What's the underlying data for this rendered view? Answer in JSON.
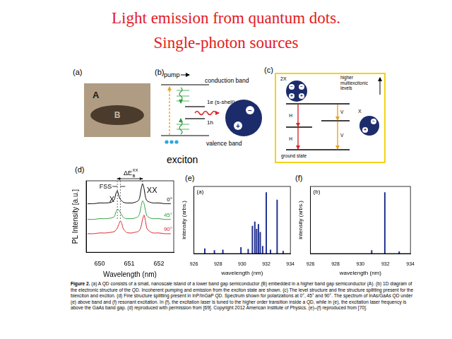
{
  "title": [
    "Light emission from quantum dots.",
    "Single-photon sources"
  ],
  "panels": {
    "a": {
      "label": "(a)",
      "materials": [
        "A",
        "B"
      ]
    },
    "b": {
      "label": "(b)",
      "pump": "pump",
      "conduction_band": "conduction band",
      "electron_level": "1e (s-shell)",
      "hole_level": "1h",
      "valence_band": "valence band",
      "name": "exciton",
      "charges": [
        "−",
        "+"
      ]
    },
    "c": {
      "label": "(c)",
      "biexciton": {
        "name": "2X",
        "charges": [
          "−",
          "−",
          "+",
          "+"
        ]
      },
      "higher_levels": [
        "higher",
        "multiexcitonic",
        "levels"
      ],
      "exciton": {
        "name": "X",
        "charges": [
          "−",
          "+"
        ]
      },
      "transitions": [
        "H",
        "V",
        "H",
        "V"
      ],
      "ground_state": "ground state"
    }
  },
  "chart_data": [
    {
      "panel_label": "(d)",
      "type": "line",
      "x_label": "Wavelength (nm)",
      "y_label": "PL Intensity [a.u.]",
      "x": [
        649.6,
        649.8,
        650.0,
        650.2,
        650.4,
        650.5,
        650.55,
        650.6,
        650.65,
        650.7,
        650.75,
        650.8,
        650.9,
        651.0,
        651.1,
        651.2,
        651.3,
        651.35,
        651.4,
        651.45,
        651.5,
        651.55,
        651.6,
        651.7,
        651.8,
        652.0,
        652.2,
        652.4
      ],
      "series": [
        {
          "name": "0°",
          "color": "#000000",
          "values": [
            6.8,
            6.8,
            6.9,
            6.9,
            7.0,
            7.4,
            8.2,
            8.6,
            7.9,
            7.4,
            7.2,
            7.0,
            6.9,
            6.9,
            6.9,
            7.0,
            7.2,
            7.6,
            8.8,
            9.6,
            8.9,
            7.7,
            7.2,
            7.0,
            6.9,
            6.9,
            6.8,
            6.8
          ]
        },
        {
          "name": "45°",
          "color": "#2e9e3e",
          "values": [
            4.6,
            4.6,
            4.7,
            4.7,
            4.8,
            5.0,
            5.6,
            6.0,
            5.9,
            5.6,
            5.2,
            4.9,
            4.7,
            4.7,
            4.7,
            4.8,
            5.0,
            5.4,
            6.4,
            7.2,
            6.8,
            5.8,
            5.1,
            4.8,
            4.7,
            4.7,
            4.6,
            4.6
          ]
        },
        {
          "name": "90°",
          "color": "#d9262b",
          "values": [
            2.6,
            2.6,
            2.7,
            2.7,
            2.8,
            2.9,
            3.1,
            3.4,
            3.9,
            4.4,
            4.0,
            3.3,
            2.8,
            2.7,
            2.7,
            2.8,
            2.9,
            3.1,
            3.6,
            4.6,
            5.2,
            4.3,
            3.3,
            2.9,
            2.7,
            2.7,
            2.6,
            2.6
          ]
        }
      ],
      "xlim": [
        649.55,
        652.5
      ],
      "xticks": [
        650,
        651,
        652
      ],
      "ylim": [
        0,
        10
      ],
      "tick_labels": "x",
      "grid": false,
      "peaks": [
        {
          "label": "X",
          "x": 650.6
        },
        {
          "label": "XX",
          "x": 651.45
        }
      ],
      "fss": {
        "label": "FSS",
        "x": [
          650.6,
          650.7
        ]
      },
      "binding_energy": {
        "label": "ΔE",
        "sub": "B",
        "sup": "XX"
      }
    },
    {
      "panel_label": "(e)",
      "type": "bar",
      "subtitle": "(a)",
      "x_label": "wavelength (nm)",
      "y_label": "intensity (arbs.)",
      "x": [
        926.9,
        927.7,
        928.4,
        929.9,
        930.5,
        930.85,
        931.05,
        931.2,
        931.35,
        931.5,
        931.7,
        932.0,
        932.35,
        932.9,
        933.4
      ],
      "values": [
        0.08,
        0.05,
        0.06,
        0.1,
        0.07,
        0.45,
        0.52,
        0.4,
        0.48,
        0.35,
        0.12,
        1.0,
        0.06,
        0.88,
        0.04
      ],
      "color": "#1f2f8f",
      "xlim": [
        926,
        934
      ],
      "xticks": [
        926,
        928,
        930,
        932,
        934
      ],
      "ylim": [
        0,
        1.1
      ],
      "tick_labels": "x",
      "grid": false
    },
    {
      "panel_label": "(f)",
      "type": "bar",
      "subtitle": "(b)",
      "x_label": "wavelength (nm)",
      "y_label": "intensity (arbs.)",
      "x": [
        930.9,
        931.95,
        933.1
      ],
      "values": [
        0.05,
        1.0,
        0.03
      ],
      "color": "#1f2f8f",
      "xlim": [
        926,
        934
      ],
      "xticks": [
        926,
        928,
        930,
        932,
        934
      ],
      "ylim": [
        0,
        1.1
      ],
      "tick_labels": "x",
      "grid": false
    }
  ],
  "caption": {
    "label": "Figure 2.",
    "text": "(a) A QD consists of a small, nanoscale island of a lower band gap semiconductor (B) embedded in a higher band gap semiconductor (A). (b) 1D diagram of the electronic structure of the QD. Incoherent pumping and emission from the exciton state are shown. (c) The level structure and fine structure splitting present for the biexciton and exciton. (d) Fine structure splitting present in InP/InGaP QD. Spectrum shown for polarizations at 0°, 45° and 90°. The spectrum of InAs/GaAs QD under (e) above band and (f) resonant excitation. In (f), the excitation laser is tuned to the higher order transition inside a QD, while in (e), the excitation laser frequency is above the GaAs band gap. (d) reproduced with permission from [69]. Copyright 2012 American Institute of Physics. (e)–(f) reproduced from [70]."
  }
}
